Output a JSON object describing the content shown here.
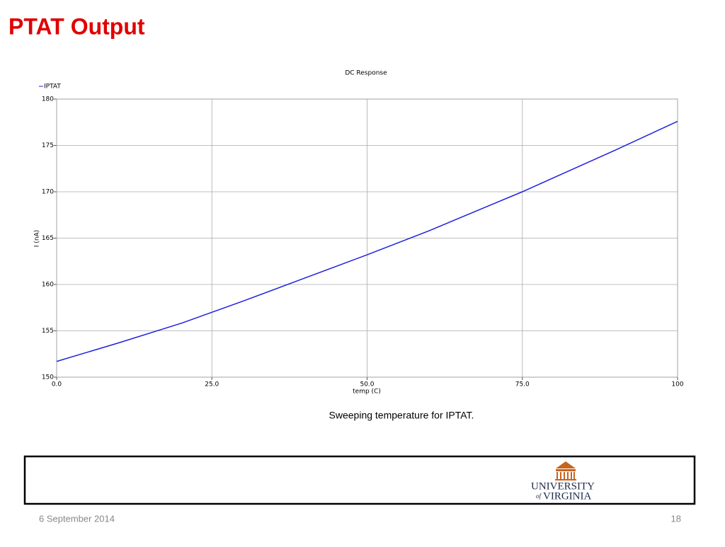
{
  "slide": {
    "title": "PTAT Output",
    "caption": "Sweeping temperature for IPTAT.",
    "date": "6 September 2014",
    "page": "18",
    "logo": {
      "line1": "UNIVERSITY",
      "of": "of",
      "line2": "VIRGINIA"
    }
  },
  "chart_data": {
    "type": "line",
    "title": "DC Response",
    "x_label": "temp (C)",
    "y_label": "I (nA)",
    "x": [
      0,
      10,
      20,
      25,
      30,
      40,
      50,
      60,
      70,
      75,
      80,
      90,
      100
    ],
    "series": [
      {
        "name": "IPTAT",
        "color": "#1f1fe0",
        "values": [
          151.7,
          153.7,
          155.8,
          157.0,
          158.2,
          160.7,
          163.2,
          165.8,
          168.6,
          170.0,
          171.5,
          174.5,
          177.6
        ]
      }
    ],
    "xlim": [
      0,
      100
    ],
    "ylim": [
      150,
      180
    ],
    "xticks": [
      {
        "value": 0,
        "label": "0.0"
      },
      {
        "value": 25,
        "label": "25.0"
      },
      {
        "value": 50,
        "label": "50.0"
      },
      {
        "value": 75,
        "label": "75.0"
      },
      100
    ],
    "yticks": [
      150,
      155,
      160,
      165,
      170,
      175,
      180
    ],
    "grid": true,
    "legend": "top-left"
  }
}
